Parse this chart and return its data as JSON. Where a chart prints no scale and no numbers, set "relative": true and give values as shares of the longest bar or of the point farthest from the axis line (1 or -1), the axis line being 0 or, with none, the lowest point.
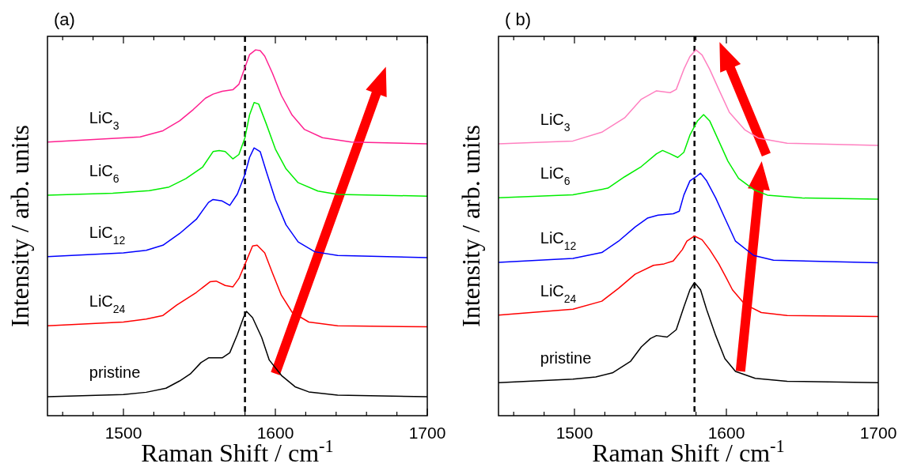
{
  "chart_data": [
    {
      "type": "line",
      "title": "(a)",
      "xlabel": "Raman Shift / cm$^{-1}$",
      "ylabel": "Intensity / arb. units",
      "relative": true,
      "grid": false,
      "xlim": [
        1450,
        1700
      ],
      "xticks": [
        {
          "value": 1460,
          "label": null
        },
        {
          "value": 1480,
          "label": null
        },
        1500,
        {
          "value": 1520,
          "label": null
        },
        {
          "value": 1540,
          "label": null
        },
        {
          "value": 1560,
          "label": null
        },
        {
          "value": 1580,
          "label": null
        },
        1600,
        {
          "value": 1620,
          "label": null
        },
        {
          "value": 1640,
          "label": null
        },
        {
          "value": 1660,
          "label": null
        },
        {
          "value": 1680,
          "label": null
        },
        1700
      ],
      "ref_lines": [
        {
          "axis": "x",
          "value": 1580,
          "color": "#000000",
          "line_style": "dashed"
        }
      ],
      "series": [
        {
          "name": "pristine",
          "color": "#000000",
          "x": [
            1450,
            1500,
            1515,
            1528,
            1537,
            1544,
            1551,
            1556,
            1565,
            1570,
            1575,
            1579,
            1581,
            1585,
            1591,
            1596,
            1604,
            1613,
            1622,
            1641,
            1700
          ],
          "values": [
            0.052,
            0.058,
            0.064,
            0.075,
            0.095,
            0.114,
            0.145,
            0.158,
            0.158,
            0.172,
            0.222,
            0.268,
            0.285,
            0.268,
            0.214,
            0.152,
            0.11,
            0.079,
            0.065,
            0.056,
            0.052
          ]
        },
        {
          "name": "LiC$_{24}$",
          "color": "#ff0000",
          "x": [
            1450,
            1500,
            1515,
            1526,
            1535,
            1548,
            1557,
            1561,
            1567,
            1572,
            1576,
            1580,
            1585,
            1588,
            1593,
            1598,
            1604,
            1611,
            1622,
            1641,
            1700
          ],
          "values": [
            0.246,
            0.256,
            0.264,
            0.274,
            0.302,
            0.337,
            0.366,
            0.368,
            0.356,
            0.352,
            0.375,
            0.414,
            0.464,
            0.466,
            0.445,
            0.391,
            0.329,
            0.283,
            0.256,
            0.246,
            0.243
          ]
        },
        {
          "name": "LiC$_{12}$",
          "color": "#0000ff",
          "x": [
            1450,
            1500,
            1515,
            1526,
            1537,
            1548,
            1556,
            1559,
            1565,
            1570,
            1575,
            1580,
            1583,
            1586,
            1590,
            1594,
            1600,
            1607,
            1615,
            1626,
            1641,
            1700
          ],
          "values": [
            0.435,
            0.445,
            0.452,
            0.466,
            0.498,
            0.537,
            0.583,
            0.591,
            0.587,
            0.575,
            0.606,
            0.66,
            0.706,
            0.732,
            0.722,
            0.668,
            0.591,
            0.522,
            0.475,
            0.448,
            0.438,
            0.432
          ]
        },
        {
          "name": "LiC$_{6}$",
          "color": "#00ee00",
          "x": [
            1450,
            1493,
            1517,
            1530,
            1541,
            1552,
            1559,
            1563,
            1567,
            1572,
            1576,
            1580,
            1583,
            1586,
            1589,
            1594,
            1600,
            1607,
            1615,
            1628,
            1641,
            1700
          ],
          "values": [
            0.603,
            0.608,
            0.615,
            0.625,
            0.648,
            0.679,
            0.722,
            0.725,
            0.722,
            0.702,
            0.714,
            0.76,
            0.822,
            0.856,
            0.852,
            0.798,
            0.729,
            0.675,
            0.637,
            0.614,
            0.605,
            0.6
          ]
        },
        {
          "name": "LiC$_{3}$",
          "color": "#ff2090",
          "x": [
            1450,
            1511,
            1526,
            1537,
            1546,
            1554,
            1559,
            1565,
            1572,
            1576,
            1580,
            1583,
            1587,
            1590,
            1593,
            1598,
            1604,
            1611,
            1619,
            1631,
            1650,
            1700
          ],
          "values": [
            0.748,
            0.762,
            0.779,
            0.806,
            0.837,
            0.868,
            0.879,
            0.887,
            0.891,
            0.906,
            0.952,
            0.987,
            1.0,
            0.998,
            0.983,
            0.937,
            0.875,
            0.822,
            0.783,
            0.76,
            0.748,
            0.743
          ]
        }
      ]
    },
    {
      "type": "line",
      "title": "( b)",
      "xlabel": "Raman Shift / cm$^{-1}$",
      "ylabel": "Intensity / arb. units",
      "relative": true,
      "grid": false,
      "xlim": [
        1450,
        1700
      ],
      "xticks": [
        {
          "value": 1460,
          "label": null
        },
        {
          "value": 1480,
          "label": null
        },
        1500,
        {
          "value": 1520,
          "label": null
        },
        {
          "value": 1540,
          "label": null
        },
        {
          "value": 1560,
          "label": null
        },
        {
          "value": 1580,
          "label": null
        },
        1600,
        {
          "value": 1620,
          "label": null
        },
        {
          "value": 1640,
          "label": null
        },
        {
          "value": 1660,
          "label": null
        },
        {
          "value": 1680,
          "label": null
        },
        1700
      ],
      "ref_lines": [
        {
          "axis": "x",
          "value": 1579,
          "color": "#000000",
          "line_style": "dashed"
        }
      ],
      "series": [
        {
          "name": "pristine",
          "color": "#000000",
          "x": [
            1450,
            1499,
            1514,
            1525,
            1537,
            1544,
            1550,
            1554,
            1561,
            1567,
            1572,
            1576,
            1579,
            1583,
            1587,
            1593,
            1599,
            1606,
            1619,
            1640,
            1700
          ],
          "values": [
            0.09,
            0.1,
            0.106,
            0.117,
            0.149,
            0.188,
            0.211,
            0.219,
            0.215,
            0.235,
            0.297,
            0.344,
            0.364,
            0.344,
            0.29,
            0.219,
            0.156,
            0.121,
            0.102,
            0.094,
            0.09
          ]
        },
        {
          "name": "LiC$_{24}$",
          "color": "#ff0000",
          "x": [
            1450,
            1499,
            1518,
            1529,
            1540,
            1552,
            1559,
            1565,
            1571,
            1574,
            1579,
            1584,
            1589,
            1595,
            1600,
            1604,
            1612,
            1623,
            1640,
            1700
          ],
          "values": [
            0.275,
            0.291,
            0.313,
            0.348,
            0.387,
            0.411,
            0.415,
            0.423,
            0.454,
            0.477,
            0.491,
            0.481,
            0.454,
            0.415,
            0.376,
            0.344,
            0.305,
            0.282,
            0.274,
            0.271
          ]
        },
        {
          "name": "LiC$_{12}$",
          "color": "#0000ff",
          "x": [
            1450,
            1499,
            1518,
            1529,
            1540,
            1548,
            1555,
            1565,
            1569,
            1572,
            1576,
            1580,
            1583,
            1587,
            1593,
            1599,
            1606,
            1618,
            1631,
            1700
          ],
          "values": [
            0.419,
            0.43,
            0.446,
            0.477,
            0.516,
            0.54,
            0.548,
            0.552,
            0.559,
            0.603,
            0.642,
            0.653,
            0.663,
            0.642,
            0.595,
            0.54,
            0.477,
            0.438,
            0.425,
            0.418
          ]
        },
        {
          "name": "LiC$_{6}$",
          "color": "#00ee00",
          "x": [
            1450,
            1499,
            1522,
            1533,
            1544,
            1554,
            1558,
            1563,
            1568,
            1572,
            1576,
            1581,
            1585,
            1589,
            1595,
            1601,
            1608,
            1618,
            1627,
            1650,
            1700
          ],
          "values": [
            0.596,
            0.604,
            0.622,
            0.653,
            0.681,
            0.716,
            0.725,
            0.716,
            0.706,
            0.72,
            0.767,
            0.806,
            0.823,
            0.806,
            0.751,
            0.696,
            0.649,
            0.618,
            0.603,
            0.595,
            0.592
          ]
        },
        {
          "name": "LiC$_{3}$",
          "color": "#ff80c0",
          "x": [
            1450,
            1499,
            1518,
            1533,
            1544,
            1554,
            1563,
            1567,
            1572,
            1576,
            1580,
            1584,
            1589,
            1595,
            1602,
            1612,
            1621,
            1640,
            1700
          ],
          "values": [
            0.743,
            0.751,
            0.775,
            0.814,
            0.865,
            0.888,
            0.883,
            0.892,
            0.947,
            0.982,
            1.0,
            0.986,
            0.947,
            0.892,
            0.829,
            0.782,
            0.759,
            0.745,
            0.739
          ]
        }
      ]
    }
  ]
}
